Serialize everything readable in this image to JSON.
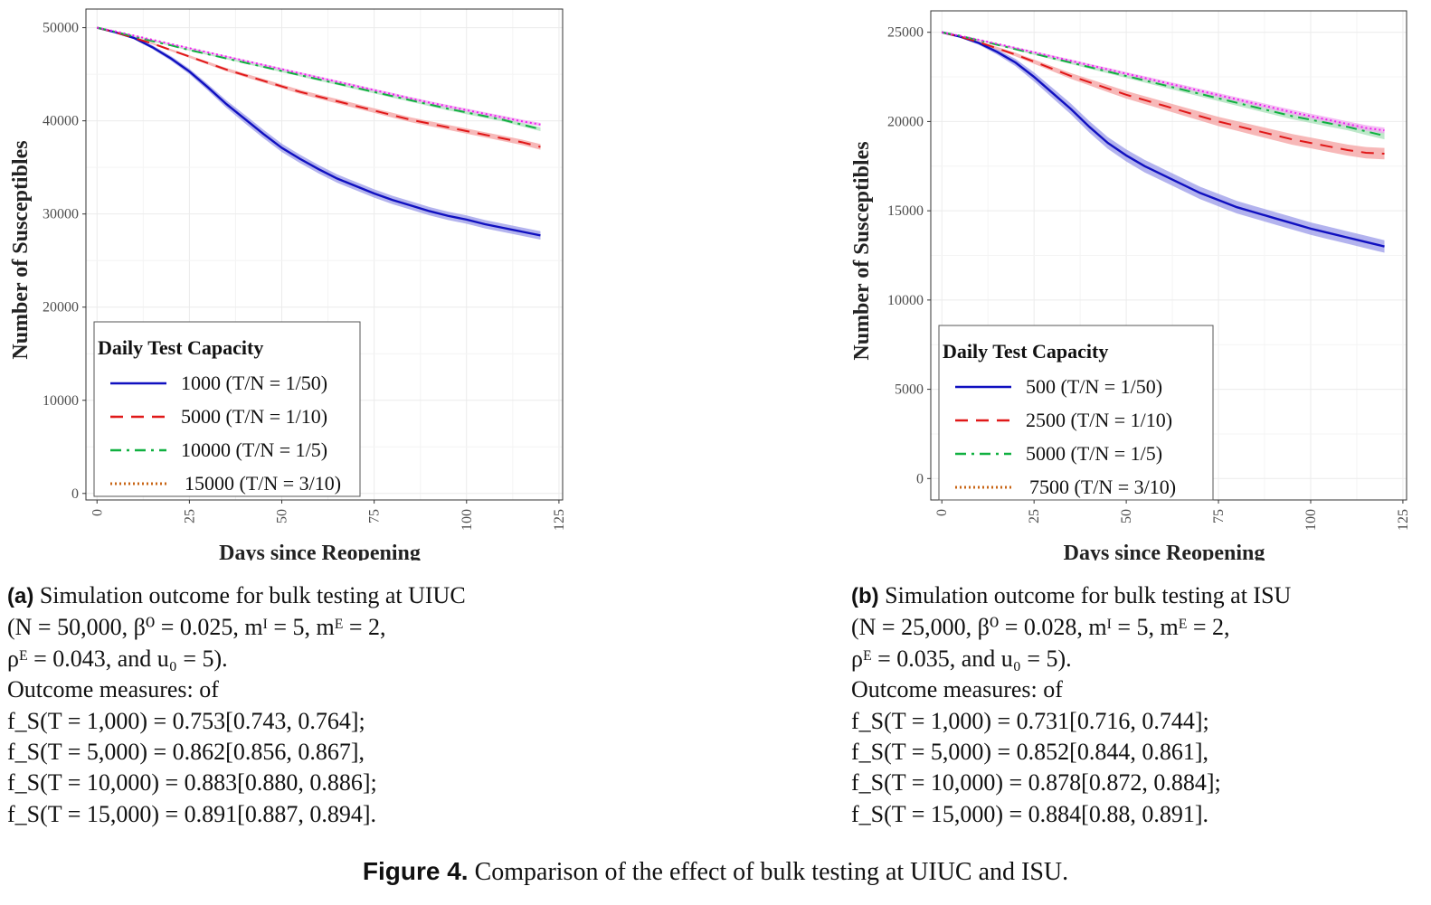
{
  "chart_data": [
    {
      "type": "line",
      "panel": "a",
      "xlabel": "Days since Reopening",
      "ylabel": "Number of Susceptibles",
      "xlim": [
        -3,
        126
      ],
      "ylim": [
        -700,
        52000
      ],
      "xticks": [
        "0",
        "25",
        "50",
        "75",
        "100",
        "125"
      ],
      "xtick_values": [
        0,
        25,
        50,
        75,
        100,
        125
      ],
      "yticks": [
        "0",
        "10000",
        "20000",
        "30000",
        "40000",
        "50000"
      ],
      "ytick_values": [
        0,
        10000,
        20000,
        30000,
        40000,
        50000
      ],
      "grid": true,
      "legend": {
        "title": "Daily Test Capacity",
        "position": "bottom-left"
      },
      "x": [
        0,
        5,
        10,
        15,
        20,
        25,
        30,
        35,
        40,
        45,
        50,
        55,
        60,
        65,
        70,
        75,
        80,
        85,
        90,
        95,
        100,
        105,
        110,
        115,
        120
      ],
      "series": [
        {
          "name": "1000 (T/N = 1/50)",
          "style": "solid",
          "color": "#1010c0",
          "band_color": "#9a9ae8",
          "values": [
            50000,
            49500,
            48900,
            47900,
            46700,
            45300,
            43600,
            41800,
            40200,
            38600,
            37100,
            35900,
            34800,
            33800,
            33000,
            32200,
            31500,
            30900,
            30300,
            29800,
            29400,
            28900,
            28500,
            28100,
            27700
          ],
          "band": [
            0,
            100,
            150,
            200,
            250,
            300,
            350,
            400,
            450,
            450,
            450,
            450,
            450,
            450,
            450,
            450,
            450,
            450,
            450,
            450,
            450,
            450,
            450,
            450,
            450
          ]
        },
        {
          "name": "5000 (T/N = 1/10)",
          "style": "dashed",
          "color": "#e01818",
          "band_color": "#f4a0a0",
          "values": [
            50000,
            49500,
            48900,
            48300,
            47600,
            46900,
            46200,
            45500,
            44900,
            44300,
            43700,
            43100,
            42600,
            42100,
            41600,
            41100,
            40600,
            40100,
            39700,
            39300,
            38900,
            38500,
            38100,
            37700,
            37200
          ],
          "band": [
            0,
            50,
            80,
            100,
            120,
            140,
            160,
            180,
            190,
            200,
            210,
            220,
            230,
            240,
            250,
            250,
            260,
            260,
            270,
            270,
            280,
            280,
            290,
            290,
            300
          ]
        },
        {
          "name": "10000 (T/N = 1/5)",
          "style": "dotdash",
          "color": "#10b040",
          "band_color": "#a8e0b8",
          "values": [
            50000,
            49550,
            49050,
            48550,
            48100,
            47600,
            47150,
            46700,
            46250,
            45800,
            45350,
            44900,
            44450,
            44000,
            43550,
            43100,
            42650,
            42200,
            41750,
            41300,
            40900,
            40500,
            40100,
            39600,
            39100
          ],
          "band": [
            0,
            30,
            50,
            60,
            70,
            80,
            90,
            100,
            110,
            120,
            130,
            140,
            150,
            150,
            160,
            160,
            170,
            170,
            180,
            180,
            190,
            190,
            200,
            200,
            200
          ]
        },
        {
          "name": "15000 (T/N = 3/10)",
          "style": "dotted",
          "color": "#c86414",
          "band_color": "#f0a8f0",
          "extra_color": "#ee22ee",
          "values": [
            50000,
            49600,
            49150,
            48700,
            48250,
            47800,
            47350,
            46900,
            46450,
            46000,
            45550,
            45100,
            44650,
            44200,
            43750,
            43300,
            42850,
            42400,
            41950,
            41550,
            41150,
            40750,
            40350,
            39950,
            39600
          ],
          "band": [
            0,
            30,
            40,
            50,
            60,
            70,
            80,
            90,
            100,
            110,
            120,
            120,
            130,
            130,
            140,
            140,
            150,
            150,
            160,
            160,
            170,
            170,
            180,
            180,
            180
          ]
        }
      ]
    },
    {
      "type": "line",
      "panel": "b",
      "xlabel": "Days since Reopening",
      "ylabel": "Number of Susceptibles",
      "xlim": [
        -3,
        126
      ],
      "ylim": [
        -1200,
        26200
      ],
      "xticks": [
        "0",
        "25",
        "50",
        "75",
        "100",
        "125"
      ],
      "xtick_values": [
        0,
        25,
        50,
        75,
        100,
        125
      ],
      "yticks": [
        "0",
        "5000",
        "10000",
        "15000",
        "20000",
        "25000"
      ],
      "ytick_values": [
        0,
        5000,
        10000,
        15000,
        20000,
        25000
      ],
      "grid": true,
      "legend": {
        "title": "Daily Test Capacity",
        "position": "bottom-left"
      },
      "x": [
        0,
        5,
        10,
        15,
        20,
        25,
        30,
        35,
        40,
        45,
        50,
        55,
        60,
        65,
        70,
        75,
        80,
        85,
        90,
        95,
        100,
        105,
        110,
        115,
        120
      ],
      "series": [
        {
          "name": "500 (T/N = 1/50)",
          "style": "solid",
          "color": "#1010c0",
          "band_color": "#9a9ae8",
          "values": [
            25000,
            24750,
            24400,
            23900,
            23300,
            22500,
            21600,
            20700,
            19700,
            18800,
            18100,
            17500,
            17000,
            16500,
            16000,
            15600,
            15200,
            14900,
            14600,
            14300,
            14000,
            13750,
            13500,
            13250,
            13000
          ],
          "band": [
            0,
            60,
            100,
            150,
            200,
            250,
            280,
            300,
            320,
            330,
            340,
            350,
            350,
            350,
            350,
            350,
            350,
            350,
            350,
            350,
            350,
            350,
            350,
            350,
            350
          ]
        },
        {
          "name": "2500 (T/N = 1/10)",
          "style": "dashed",
          "color": "#e01818",
          "band_color": "#f4a0a0",
          "values": [
            25000,
            24750,
            24450,
            24100,
            23750,
            23350,
            22950,
            22550,
            22200,
            21850,
            21500,
            21200,
            20900,
            20600,
            20300,
            20000,
            19750,
            19500,
            19250,
            19000,
            18800,
            18600,
            18400,
            18250,
            18200
          ],
          "band": [
            0,
            40,
            60,
            80,
            100,
            120,
            140,
            160,
            180,
            200,
            210,
            220,
            230,
            240,
            250,
            260,
            270,
            280,
            290,
            300,
            300,
            310,
            310,
            320,
            320
          ]
        },
        {
          "name": "5000 (T/N = 1/5)",
          "style": "dotdash",
          "color": "#10b040",
          "band_color": "#a8e0b8",
          "values": [
            25000,
            24800,
            24550,
            24300,
            24050,
            23800,
            23550,
            23300,
            23050,
            22800,
            22550,
            22300,
            22050,
            21800,
            21550,
            21300,
            21050,
            20800,
            20550,
            20300,
            20100,
            19900,
            19700,
            19450,
            19200
          ],
          "band": [
            0,
            20,
            30,
            40,
            50,
            60,
            70,
            80,
            90,
            100,
            110,
            120,
            130,
            140,
            150,
            160,
            160,
            170,
            170,
            180,
            180,
            190,
            190,
            200,
            200
          ]
        },
        {
          "name": "7500 (T/N = 3/10)",
          "style": "dotted",
          "color": "#c86414",
          "band_color": "#f0a8f0",
          "extra_color": "#ee22ee",
          "values": [
            25000,
            24800,
            24580,
            24350,
            24120,
            23880,
            23640,
            23400,
            23160,
            22920,
            22680,
            22440,
            22200,
            21960,
            21720,
            21480,
            21240,
            21000,
            20760,
            20520,
            20300,
            20080,
            19860,
            19640,
            19500
          ],
          "band": [
            0,
            20,
            30,
            40,
            50,
            60,
            70,
            80,
            80,
            90,
            90,
            100,
            100,
            110,
            110,
            120,
            120,
            130,
            130,
            140,
            140,
            150,
            150,
            160,
            160
          ]
        }
      ]
    }
  ],
  "captions": {
    "a": {
      "label": "(a)",
      "line1": "Simulation outcome for bulk testing at UIUC",
      "line2": "(N = 50,000, β⁰ = 0.025, mᴵ = 5, mᴱ = 2,",
      "line3": "ρᴱ = 0.043, and u₀ = 5).",
      "line4": "Outcome measures: of",
      "measures": [
        "f_S(T = 1,000) = 0.753[0.743, 0.764];",
        "f_S(T = 5,000) = 0.862[0.856, 0.867],",
        "f_S(T = 10,000) = 0.883[0.880, 0.886];",
        "f_S(T = 15,000) = 0.891[0.887, 0.894]."
      ]
    },
    "b": {
      "label": "(b)",
      "line1": "Simulation outcome for bulk testing at ISU",
      "line2": "(N = 25,000, β⁰ = 0.028, mᴵ = 5, mᴱ = 2,",
      "line3": "ρᴱ = 0.035, and u₀ = 5).",
      "line4": "Outcome measures: of",
      "measures": [
        "f_S(T = 1,000) = 0.731[0.716, 0.744];",
        "f_S(T = 5,000) = 0.852[0.844, 0.861],",
        "f_S(T = 10,000) = 0.878[0.872, 0.884];",
        "f_S(T = 15,000) = 0.884[0.88, 0.891]."
      ]
    }
  },
  "figure_caption": {
    "label": "Figure 4.",
    "text": "Comparison of the effect of bulk testing at UIUC and ISU."
  }
}
